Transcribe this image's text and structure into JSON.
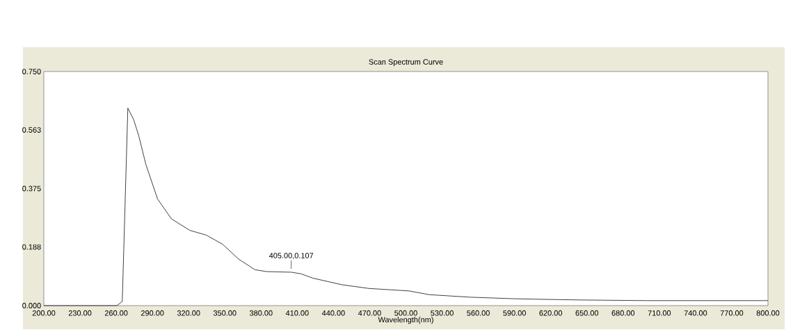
{
  "chart_data": {
    "type": "line",
    "title": "Scan Spectrum Curve",
    "xlabel": "Wavelength(nm)",
    "x": [
      200,
      260.5,
      265,
      269.6,
      274.6,
      278.8,
      284.5,
      294.2,
      305.7,
      321,
      334.5,
      348,
      361.4,
      374.9,
      384.4,
      405,
      413,
      422.9,
      446.8,
      469.2,
      502.6,
      519.4,
      553,
      589.3,
      614.4,
      645.1,
      698.2,
      800
    ],
    "series": [
      {
        "color": "#404040",
        "values": [
          0,
          0,
          0.013,
          0.633,
          0.594,
          0.542,
          0.453,
          0.342,
          0.278,
          0.241,
          0.226,
          0.197,
          0.149,
          0.115,
          0.109,
          0.107,
          0.102,
          0.088,
          0.067,
          0.055,
          0.047,
          0.035,
          0.027,
          0.022,
          0.02,
          0.018,
          0.016,
          0.016
        ]
      }
    ],
    "xlim": [
      200,
      800
    ],
    "ylim": [
      0,
      0.75
    ],
    "xticks": [
      {
        "value": 200,
        "label": "200.00"
      },
      {
        "value": 230,
        "label": "230.00"
      },
      {
        "value": 260,
        "label": "260.00"
      },
      {
        "value": 290,
        "label": "290.00"
      },
      {
        "value": 320,
        "label": "320.00"
      },
      {
        "value": 350,
        "label": "350.00"
      },
      {
        "value": 380,
        "label": "380.00"
      },
      {
        "value": 410,
        "label": "410.00"
      },
      {
        "value": 440,
        "label": "440.00"
      },
      {
        "value": 470,
        "label": "470.00"
      },
      {
        "value": 500,
        "label": "500.00"
      },
      {
        "value": 530,
        "label": "530.00"
      },
      {
        "value": 560,
        "label": "560.00"
      },
      {
        "value": 590,
        "label": "590.00"
      },
      {
        "value": 620,
        "label": "620.00"
      },
      {
        "value": 650,
        "label": "650.00"
      },
      {
        "value": 680,
        "label": "680.00"
      },
      {
        "value": 710,
        "label": "710.00"
      },
      {
        "value": 740,
        "label": "740.00"
      },
      {
        "value": 770,
        "label": "770.00"
      },
      {
        "value": 800,
        "label": "800.00"
      }
    ],
    "yticks": [
      {
        "value": 0,
        "label": "0.000"
      },
      {
        "value": 0.188,
        "label": "0.188"
      },
      {
        "value": 0.375,
        "label": "0.375"
      },
      {
        "value": 0.563,
        "label": "0.563"
      },
      {
        "value": 0.75,
        "label": "0.750"
      }
    ],
    "annotations": [
      {
        "text": "405.00,0.107",
        "x": 405,
        "y": 0.107
      }
    ],
    "grid": false,
    "marker": "none",
    "line_style": "solid"
  }
}
